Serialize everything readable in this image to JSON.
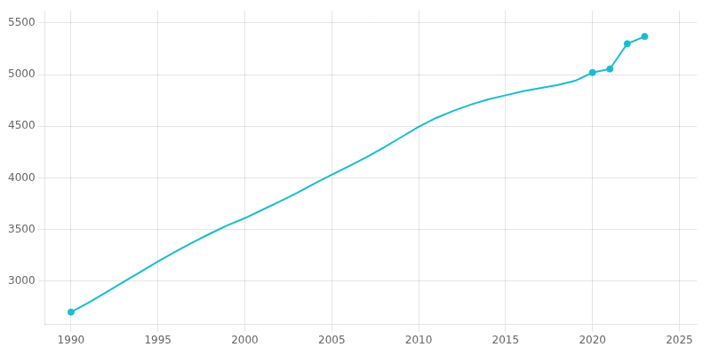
{
  "chart_data": {
    "type": "line",
    "x": [
      1990,
      1991,
      1992,
      1993,
      1994,
      1995,
      1996,
      1997,
      1998,
      1999,
      2000,
      2001,
      2002,
      2003,
      2004,
      2005,
      2006,
      2007,
      2008,
      2009,
      2010,
      2011,
      2012,
      2013,
      2014,
      2015,
      2016,
      2017,
      2018,
      2019,
      2020,
      2021,
      2022,
      2023
    ],
    "series": [
      {
        "type": "line",
        "color": "#17becf",
        "values": [
          2700,
          2790,
          2890,
          2990,
          3090,
          3190,
          3285,
          3375,
          3460,
          3540,
          3610,
          3690,
          3770,
          3855,
          3945,
          4030,
          4115,
          4200,
          4295,
          4395,
          4495,
          4580,
          4650,
          4710,
          4760,
          4800,
          4840,
          4870,
          4900,
          4940,
          5020,
          5055,
          5300,
          5370
        ]
      },
      {
        "type": "scatter",
        "marker": "circle",
        "color": "#17becf",
        "values": [
          2700,
          null,
          null,
          null,
          null,
          null,
          null,
          null,
          null,
          null,
          null,
          null,
          null,
          null,
          null,
          null,
          null,
          null,
          null,
          null,
          null,
          null,
          null,
          null,
          null,
          null,
          null,
          null,
          null,
          null,
          5020,
          5055,
          5300,
          5370
        ]
      }
    ],
    "xlim": [
      1988.5,
      2026.0
    ],
    "xticks": [
      1990,
      1995,
      2000,
      2005,
      2010,
      2015,
      2020,
      2025
    ],
    "ylim": [
      2580,
      5620
    ],
    "yticks": [
      3000,
      3500,
      4000,
      4500,
      5000,
      5500
    ],
    "grid": true
  }
}
